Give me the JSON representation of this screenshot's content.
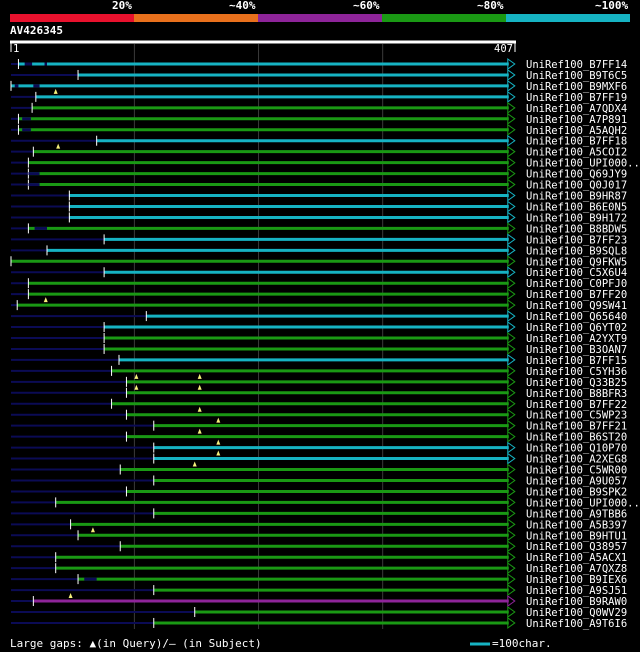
{
  "query": {
    "id": "AV426345",
    "start": "1",
    "end": "407"
  },
  "legend": {
    "labels": [
      "20%",
      "~40%",
      "~60%",
      "~80%",
      "~100%"
    ],
    "colors": [
      "#e8112d",
      "#e8701c",
      "#8e2499",
      "#1a9914",
      "#16b3c3"
    ]
  },
  "footer": {
    "gaps_text": "Large gaps: ▲(in Query)/— (in Subject)",
    "scale_text": "=100char.",
    "scale_color": "#16b3c3"
  },
  "chart_data": {
    "type": "alignment-overview",
    "query_length": 407,
    "gridlines": [
      100,
      200,
      300
    ],
    "hits": [
      {
        "label": "UniRef100_B7FF14",
        "start": 7,
        "end": 402,
        "color": "#16b3c3",
        "tri": [],
        "gaps": [
          [
            12,
            18
          ],
          [
            28,
            30
          ]
        ]
      },
      {
        "label": "UniRef100_B9T6C5",
        "start": 55,
        "end": 402,
        "color": "#16b3c3",
        "tri": [],
        "gaps": []
      },
      {
        "label": "UniRef100_B9MXF6",
        "start": 1,
        "end": 402,
        "color": "#16b3c3",
        "tri": [],
        "gaps": [
          [
            4,
            7
          ],
          [
            19,
            24
          ]
        ]
      },
      {
        "label": "UniRef100_B7FF19",
        "start": 21,
        "end": 402,
        "color": "#16b3c3",
        "tri": [
          37
        ],
        "gaps": []
      },
      {
        "label": "UniRef100_A7QDX4",
        "start": 18,
        "end": 402,
        "color": "#1a9914",
        "tri": [],
        "gaps": []
      },
      {
        "label": "UniRef100_A7P891",
        "start": 7,
        "end": 402,
        "color": "#1a9914",
        "tri": [],
        "gaps": [
          [
            10,
            17
          ]
        ]
      },
      {
        "label": "UniRef100_A5AQH2",
        "start": 7,
        "end": 402,
        "color": "#1a9914",
        "tri": [],
        "gaps": [
          [
            10,
            17
          ]
        ]
      },
      {
        "label": "UniRef100_B7FF18",
        "start": 70,
        "end": 402,
        "color": "#16b3c3",
        "tri": [],
        "gaps": []
      },
      {
        "label": "UniRef100_A5COI2",
        "start": 19,
        "end": 402,
        "color": "#1a9914",
        "tri": [
          39
        ],
        "gaps": []
      },
      {
        "label": "UniRef100_UPI000..",
        "start": 15,
        "end": 402,
        "color": "#1a9914",
        "tri": [],
        "gaps": []
      },
      {
        "label": "UniRef100_Q69JY9",
        "start": 15,
        "end": 402,
        "color": "#1a9914",
        "tri": [],
        "gaps": [
          [
            15,
            24
          ]
        ]
      },
      {
        "label": "UniRef100_Q0J017",
        "start": 15,
        "end": 402,
        "color": "#1a9914",
        "tri": [],
        "gaps": [
          [
            15,
            24
          ]
        ]
      },
      {
        "label": "UniRef100_B9HR87",
        "start": 48,
        "end": 402,
        "color": "#16b3c3",
        "tri": [],
        "gaps": []
      },
      {
        "label": "UniRef100_B6E0N5",
        "start": 48,
        "end": 402,
        "color": "#16b3c3",
        "tri": [],
        "gaps": []
      },
      {
        "label": "UniRef100_B9H172",
        "start": 48,
        "end": 402,
        "color": "#16b3c3",
        "tri": [],
        "gaps": []
      },
      {
        "label": "UniRef100_B8BDW5",
        "start": 15,
        "end": 402,
        "color": "#1a9914",
        "tri": [],
        "gaps": [
          [
            20,
            30
          ]
        ]
      },
      {
        "label": "UniRef100_B7FF23",
        "start": 76,
        "end": 402,
        "color": "#16b3c3",
        "tri": [],
        "gaps": []
      },
      {
        "label": "UniRef100_B9SQL8",
        "start": 30,
        "end": 402,
        "color": "#16b3c3",
        "tri": [],
        "gaps": []
      },
      {
        "label": "UniRef100_Q9FKW5",
        "start": 1,
        "end": 402,
        "color": "#1a9914",
        "tri": [],
        "gaps": []
      },
      {
        "label": "UniRef100_C5X6U4",
        "start": 76,
        "end": 402,
        "color": "#16b3c3",
        "tri": [],
        "gaps": []
      },
      {
        "label": "UniRef100_C0PFJ0",
        "start": 15,
        "end": 402,
        "color": "#1a9914",
        "tri": [],
        "gaps": []
      },
      {
        "label": "UniRef100_B7FF20",
        "start": 15,
        "end": 402,
        "color": "#1a9914",
        "tri": [],
        "gaps": []
      },
      {
        "label": "UniRef100_Q9SW41",
        "start": 6,
        "end": 402,
        "color": "#1a9914",
        "tri": [
          29
        ],
        "gaps": []
      },
      {
        "label": "UniRef100_Q65640",
        "start": 110,
        "end": 402,
        "color": "#16b3c3",
        "tri": [],
        "gaps": []
      },
      {
        "label": "UniRef100_Q6YT02",
        "start": 76,
        "end": 402,
        "color": "#16b3c3",
        "tri": [],
        "gaps": []
      },
      {
        "label": "UniRef100_A2YXT9",
        "start": 76,
        "end": 402,
        "color": "#1a9914",
        "tri": [],
        "gaps": []
      },
      {
        "label": "UniRef100_B3OAN7",
        "start": 76,
        "end": 402,
        "color": "#1a9914",
        "tri": [],
        "gaps": []
      },
      {
        "label": "UniRef100_B7FF15",
        "start": 88,
        "end": 402,
        "color": "#16b3c3",
        "tri": [],
        "gaps": []
      },
      {
        "label": "UniRef100_C5YH36",
        "start": 82,
        "end": 402,
        "color": "#1a9914",
        "tri": [],
        "gaps": []
      },
      {
        "label": "UniRef100_Q33B25",
        "start": 94,
        "end": 402,
        "color": "#1a9914",
        "tri": [
          102,
          153
        ],
        "gaps": []
      },
      {
        "label": "UniRef100_B8BFR3",
        "start": 94,
        "end": 402,
        "color": "#1a9914",
        "tri": [
          102,
          153
        ],
        "gaps": []
      },
      {
        "label": "UniRef100_B7FF22",
        "start": 82,
        "end": 402,
        "color": "#1a9914",
        "tri": [],
        "gaps": []
      },
      {
        "label": "UniRef100_C5WP23",
        "start": 94,
        "end": 402,
        "color": "#1a9914",
        "tri": [
          153
        ],
        "gaps": []
      },
      {
        "label": "UniRef100_B7FF21",
        "start": 116,
        "end": 402,
        "color": "#1a9914",
        "tri": [
          168
        ],
        "gaps": []
      },
      {
        "label": "UniRef100_B6ST20",
        "start": 94,
        "end": 402,
        "color": "#1a9914",
        "tri": [
          153
        ],
        "gaps": []
      },
      {
        "label": "UniRef100_Q10P70",
        "start": 116,
        "end": 402,
        "color": "#16b3c3",
        "tri": [
          168
        ],
        "gaps": []
      },
      {
        "label": "UniRef100_A2XEG8",
        "start": 116,
        "end": 402,
        "color": "#16b3c3",
        "tri": [
          168
        ],
        "gaps": []
      },
      {
        "label": "UniRef100_C5WR00",
        "start": 89,
        "end": 402,
        "color": "#1a9914",
        "tri": [
          149
        ],
        "gaps": []
      },
      {
        "label": "UniRef100_A9U057",
        "start": 116,
        "end": 402,
        "color": "#1a9914",
        "tri": [],
        "gaps": []
      },
      {
        "label": "UniRef100_B9SPK2",
        "start": 94,
        "end": 402,
        "color": "#1a9914",
        "tri": [],
        "gaps": []
      },
      {
        "label": "UniRef100_UPI000..",
        "start": 37,
        "end": 402,
        "color": "#1a9914",
        "tri": [],
        "gaps": []
      },
      {
        "label": "UniRef100_A9TBB6",
        "start": 116,
        "end": 402,
        "color": "#1a9914",
        "tri": [],
        "gaps": []
      },
      {
        "label": "UniRef100_A5B397",
        "start": 49,
        "end": 402,
        "color": "#1a9914",
        "tri": [],
        "gaps": []
      },
      {
        "label": "UniRef100_B9HTU1",
        "start": 55,
        "end": 402,
        "color": "#1a9914",
        "tri": [
          67
        ],
        "gaps": []
      },
      {
        "label": "UniRef100_Q38957",
        "start": 89,
        "end": 402,
        "color": "#1a9914",
        "tri": [],
        "gaps": []
      },
      {
        "label": "UniRef100_A5ACX1",
        "start": 37,
        "end": 402,
        "color": "#1a9914",
        "tri": [],
        "gaps": []
      },
      {
        "label": "UniRef100_A7QXZ8",
        "start": 37,
        "end": 402,
        "color": "#1a9914",
        "tri": [],
        "gaps": []
      },
      {
        "label": "UniRef100_B9IEX6",
        "start": 55,
        "end": 402,
        "color": "#1a9914",
        "tri": [],
        "gaps": [
          [
            60,
            70
          ]
        ]
      },
      {
        "label": "UniRef100_A9SJ51",
        "start": 116,
        "end": 402,
        "color": "#1a9914",
        "tri": [],
        "gaps": []
      },
      {
        "label": "UniRef100_B9RAW0",
        "start": 19,
        "end": 402,
        "color": "#8e2499",
        "tri": [
          49
        ],
        "gaps": []
      },
      {
        "label": "UniRef100_Q0WV29",
        "start": 149,
        "end": 402,
        "color": "#1a9914",
        "tri": [],
        "gaps": []
      },
      {
        "label": "UniRef100_A9T6I6",
        "start": 116,
        "end": 402,
        "color": "#1a9914",
        "tri": [],
        "gaps": []
      }
    ]
  }
}
